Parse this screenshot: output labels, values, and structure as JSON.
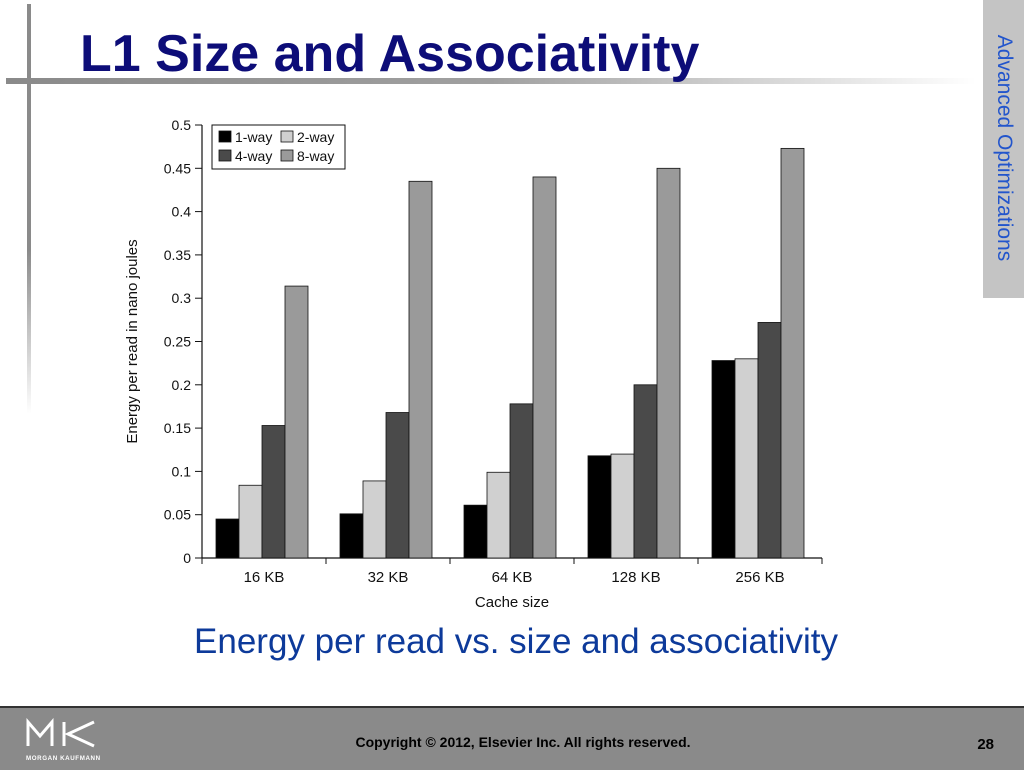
{
  "slide": {
    "title": "L1 Size and Associativity",
    "side_tab": "Advanced Optimizations",
    "caption": "Energy per read vs. size and associativity"
  },
  "footer": {
    "copyright": "Copyright © 2012, Elsevier Inc. All rights reserved.",
    "page_number": "28",
    "logo_text": "MORGAN KAUFMANN"
  },
  "colors": {
    "title": "#0d0d78",
    "caption": "#0d3a9a",
    "side_tab_text": "#2255cc"
  },
  "chart_data": {
    "type": "bar",
    "categories": [
      "16 KB",
      "32 KB",
      "64 KB",
      "128 KB",
      "256 KB"
    ],
    "series": [
      {
        "name": "1-way",
        "color": "#000000",
        "values": [
          0.045,
          0.051,
          0.061,
          0.118,
          0.228
        ]
      },
      {
        "name": "2-way",
        "color": "#d0d0d0",
        "values": [
          0.084,
          0.089,
          0.099,
          0.12,
          0.23
        ]
      },
      {
        "name": "4-way",
        "color": "#4a4a4a",
        "values": [
          0.153,
          0.168,
          0.178,
          0.2,
          0.272
        ]
      },
      {
        "name": "8-way",
        "color": "#9a9a9a",
        "values": [
          0.314,
          0.435,
          0.44,
          0.45,
          0.473
        ]
      }
    ],
    "xlabel": "Cache size",
    "ylabel": "Energy per read in nano joules",
    "ylim": [
      0,
      0.5
    ],
    "yticks": [
      "0",
      "0.05",
      "0.1",
      "0.15",
      "0.2",
      "0.25",
      "0.3",
      "0.35",
      "0.4",
      "0.45",
      "0.5"
    ],
    "legend_position": "top-left",
    "grid": false
  }
}
